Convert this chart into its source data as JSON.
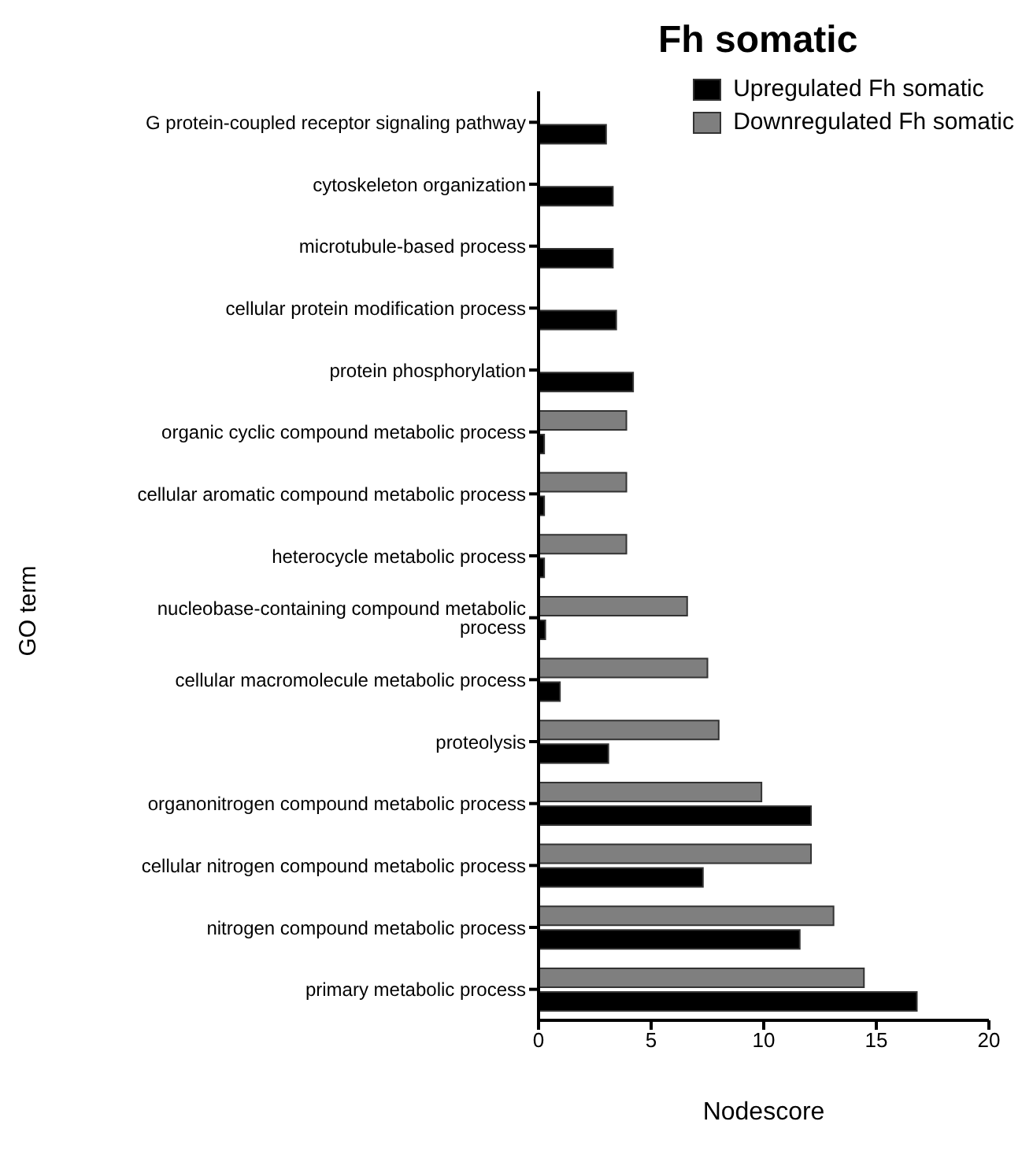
{
  "chart_data": {
    "type": "bar",
    "orientation": "horizontal",
    "title": "Fh somatic",
    "xlabel": "Nodescore",
    "ylabel": "GO term",
    "categories": [
      "G protein-coupled receptor signaling pathway",
      "cytoskeleton organization",
      "microtubule-based process",
      "cellular protein modification process",
      "protein phosphorylation",
      "organic cyclic compound metabolic process",
      "cellular aromatic compound metabolic process",
      "heterocycle metabolic process",
      "nucleobase-containing compound metabolic process",
      "cellular macromolecule metabolic process",
      "proteolysis",
      "organonitrogen compound metabolic process",
      "cellular nitrogen compound metabolic process",
      "nitrogen compound metabolic process",
      "primary metabolic process"
    ],
    "series": [
      {
        "name": "Upregulated Fh somatic",
        "color": "#000000",
        "values": [
          3.0,
          3.3,
          3.3,
          3.45,
          4.2,
          0.25,
          0.25,
          0.25,
          0.3,
          0.95,
          3.1,
          12.1,
          7.3,
          11.6,
          16.8
        ]
      },
      {
        "name": "Downregulated Fh somatic",
        "color": "#7f7f7f",
        "values": [
          null,
          null,
          null,
          null,
          null,
          3.9,
          3.9,
          3.9,
          6.6,
          7.5,
          8.0,
          9.9,
          12.1,
          13.1,
          14.45
        ]
      }
    ],
    "xlim": [
      0,
      20
    ],
    "xticks": [
      0,
      5,
      10,
      15,
      20
    ],
    "legend": "top right"
  }
}
